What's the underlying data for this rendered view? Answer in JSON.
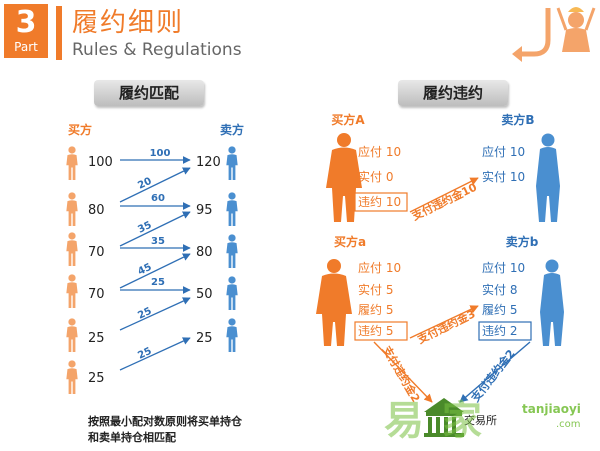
{
  "header": {
    "part_number": "3",
    "part_label": "Part",
    "title_cn": "履约细则",
    "title_en": "Rules & Regulations"
  },
  "left_panel": {
    "title": "履约匹配",
    "buyer_label": "买方",
    "seller_label": "卖方",
    "buyer_values": [
      "100",
      "80",
      "70",
      "70",
      "25",
      "25"
    ],
    "seller_values": [
      "120",
      "95",
      "80",
      "50",
      "25"
    ],
    "match_labels": [
      "100",
      "20",
      "60",
      "35",
      "35",
      "45",
      "25",
      "25",
      "25"
    ],
    "note": "按照最小配对数原则将买单持仓和卖单持仓相匹配"
  },
  "right_panel": {
    "title": "履约违约",
    "case1": {
      "buyer_label": "买方A",
      "seller_label": "卖方B",
      "buyer_rows": [
        "应付 10",
        "实付  0",
        "违约 10"
      ],
      "seller_rows": [
        "应付  10",
        "实付  10"
      ],
      "penalty": "支付违约金10"
    },
    "case2": {
      "buyer_label": "买方a",
      "seller_label": "卖方b",
      "buyer_rows": [
        "应付 10",
        "实付  5",
        "履约  5",
        "违约  5"
      ],
      "seller_rows": [
        "应付  10",
        "实付  8",
        "履约  5",
        "违约  2"
      ],
      "penalty_a_to_b": "支付违约金3",
      "penalty_a_to_exchange": "支付违约金2",
      "penalty_b_to_exchange": "支付违约金2",
      "exchange_label": "交易所"
    }
  },
  "watermark": {
    "cn": "易 家",
    "en": "tanjiaoyi",
    "com": ".com"
  },
  "colors": {
    "orange": "#f07b2a",
    "blue": "#2f6fb5",
    "person_orange": "#f4a46a",
    "person_blue": "#4a8fd0"
  }
}
